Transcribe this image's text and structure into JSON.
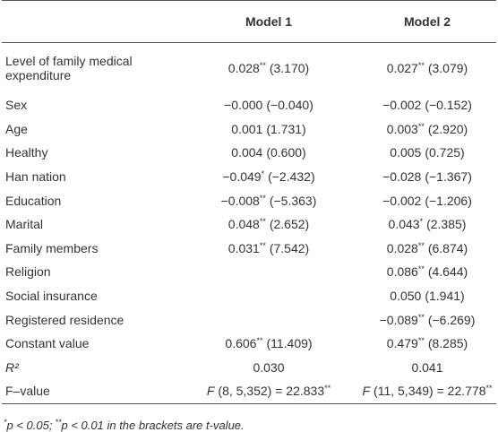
{
  "table": {
    "header": [
      "Model 1",
      "Model 2"
    ],
    "rows": [
      {
        "label": "Level of family medical expenditure",
        "cells": [
          {
            "main": "0.028",
            "sup": "**",
            "rest": "(3.170)"
          },
          {
            "main": "0.027",
            "sup": "**",
            "rest": "(3.079)"
          }
        ]
      },
      {
        "label": "Sex",
        "cells": [
          {
            "main": "−0.000",
            "rest": "(−0.040)"
          },
          {
            "main": "−0.002",
            "rest": "(−0.152)"
          }
        ]
      },
      {
        "label": "Age",
        "cells": [
          {
            "main": "0.001",
            "rest": "(1.731)"
          },
          {
            "main": "0.003",
            "sup": "**",
            "rest": "(2.920)"
          }
        ]
      },
      {
        "label": "Healthy",
        "cells": [
          {
            "main": "0.004",
            "rest": "(0.600)"
          },
          {
            "main": "0.005",
            "rest": "(0.725)"
          }
        ]
      },
      {
        "label": "Han nation",
        "cells": [
          {
            "main": "−0.049",
            "sup": "*",
            "rest": "(−2.432)"
          },
          {
            "main": "−0.028",
            "rest": "(−1.367)"
          }
        ]
      },
      {
        "label": "Education",
        "cells": [
          {
            "main": "−0.008",
            "sup": "**",
            "rest": "(−5.363)"
          },
          {
            "main": "−0.002",
            "rest": "(−1.206)"
          }
        ]
      },
      {
        "label": "Marital",
        "cells": [
          {
            "main": "0.048",
            "sup": "**",
            "rest": "(2.652)"
          },
          {
            "main": "0.043",
            "sup": "*",
            "rest": "(2.385)"
          }
        ]
      },
      {
        "label": "Family members",
        "cells": [
          {
            "main": "0.031",
            "sup": "**",
            "rest": "(7.542)"
          },
          {
            "main": "0.028",
            "sup": "**",
            "rest": "(6.874)"
          }
        ]
      },
      {
        "label": "Religion",
        "cells": [
          null,
          {
            "main": "0.086",
            "sup": "**",
            "rest": "(4.644)"
          }
        ]
      },
      {
        "label": "Social insurance",
        "cells": [
          null,
          {
            "main": "0.050",
            "rest": "(1.941)"
          }
        ]
      },
      {
        "label": "Registered residence",
        "cells": [
          null,
          {
            "main": "−0.089",
            "sup": "**",
            "rest": "(−6.269)"
          }
        ]
      },
      {
        "label": "Constant value",
        "cells": [
          {
            "main": "0.606",
            "sup": "**",
            "rest": "(11.409)"
          },
          {
            "main": "0.479",
            "sup": "**",
            "rest": "(8.285)"
          }
        ]
      },
      {
        "label": "R²",
        "label_italic": true,
        "cells": [
          {
            "main": "0.030"
          },
          {
            "main": "0.041"
          }
        ]
      },
      {
        "label": "F–value",
        "cells": [
          {
            "italic": "F",
            "main": "(8, 5,352) = 22.833",
            "sup": "**"
          },
          {
            "italic": "F",
            "main": "(11, 5,349) = 22.778",
            "sup": "**"
          }
        ]
      }
    ],
    "footnote": {
      "sup1": "*",
      "text1": "p < 0.05;",
      "sup2": "**",
      "text2": "p < 0.01 in the brackets are t-value."
    }
  }
}
